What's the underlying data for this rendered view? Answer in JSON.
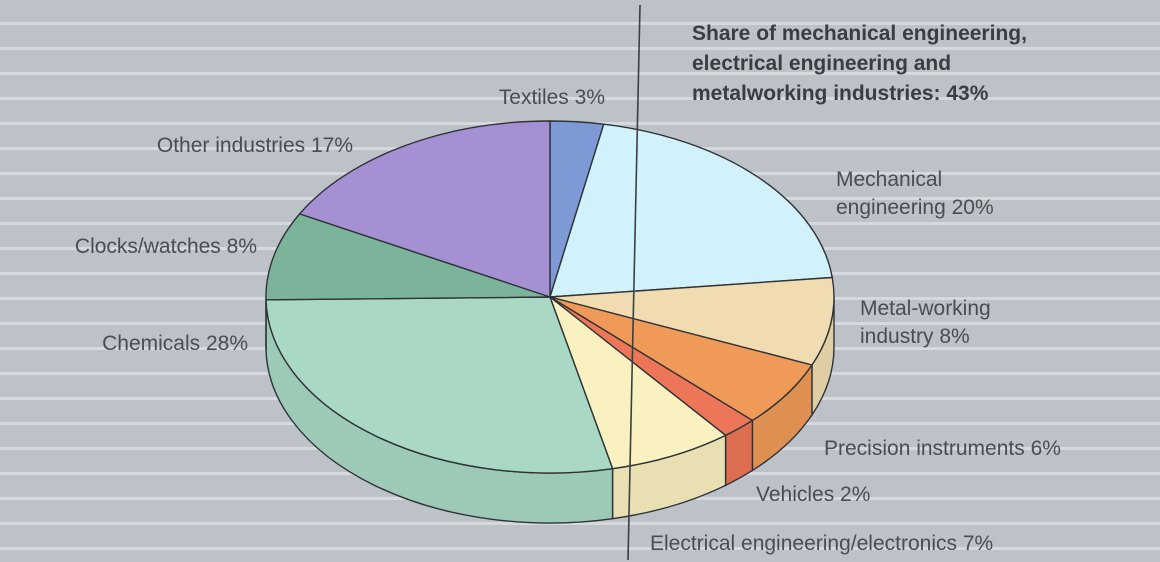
{
  "chart_data": {
    "type": "pie",
    "style": "3d",
    "unit": "%",
    "slices": [
      {
        "label": "Textiles 3%",
        "name": "Textiles",
        "value": 3,
        "color": "#7d9ad6"
      },
      {
        "label": "Mechanical engineering 20%",
        "name": "Mechanical engineering",
        "value": 20,
        "color": "#d2f2fb"
      },
      {
        "label": "Metal-working industry 8%",
        "name": "Metal-working industry",
        "value": 8,
        "color": "#f0dcb0"
      },
      {
        "label": "Precision instruments 6%",
        "name": "Precision instruments",
        "value": 6,
        "color": "#ef9a58"
      },
      {
        "label": "Vehicles 2%",
        "name": "Vehicles",
        "value": 2,
        "color": "#ee7658"
      },
      {
        "label": "Electrical engineering/electronics 7%",
        "name": "Electrical engineering/electronics",
        "value": 7,
        "color": "#f9f1c0"
      },
      {
        "label": "Chemicals 28%",
        "name": "Chemicals",
        "value": 28,
        "color": "#a9d8c5"
      },
      {
        "label": "Clocks/watches 8%",
        "name": "Clocks/watches",
        "value": 8,
        "color": "#7cb49b"
      },
      {
        "label": "Other industries 17%",
        "name": "Other industries",
        "value": 17,
        "color": "#a490d2"
      }
    ],
    "highlight_group": {
      "text": "Share of mechanical engineering, electrical engineering and metalworking industries: 43%",
      "lines": [
        "Share of mechanical engineering,",
        "electrical engineering and",
        "metalworking industries: 43%"
      ],
      "value": 43
    }
  }
}
